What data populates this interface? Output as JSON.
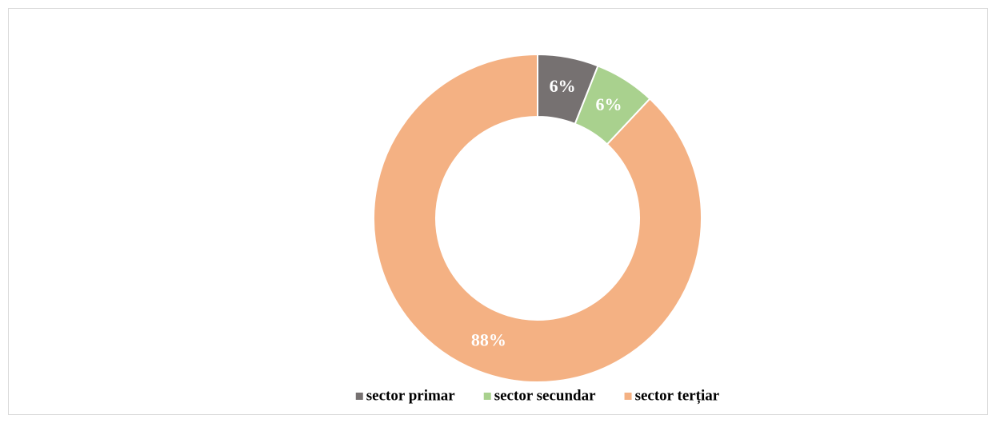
{
  "chart_data": {
    "type": "donut",
    "categories": [
      "sector primar",
      "sector secundar",
      "sector terțiar"
    ],
    "values": [
      6,
      6,
      88
    ],
    "value_labels": [
      "6%",
      "6%",
      "88%"
    ],
    "colors": [
      "#767171",
      "#a9d18e",
      "#f4b183"
    ],
    "legend": "bottom"
  }
}
